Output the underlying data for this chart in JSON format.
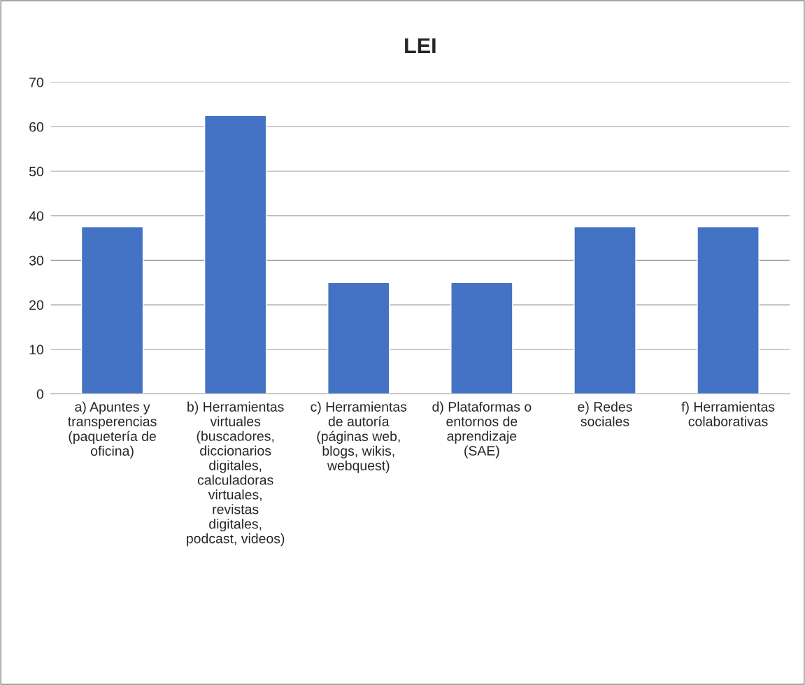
{
  "chart_data": {
    "type": "bar",
    "title": "LEI",
    "categories": [
      "a) Apuntes y transperencias (paquetería de oficina)",
      "b) Herramientas virtuales (buscadores, diccionarios digitales, calculadoras virtuales, revistas digitales, podcast, videos)",
      "c) Herramientas de autoría (páginas web, blogs, wikis, webquest)",
      "d) Plataformas o entornos de aprendizaje (SAE)",
      "e) Redes sociales",
      "f) Herramientas colaborativas"
    ],
    "values": [
      37.5,
      62.5,
      25,
      25,
      37.5,
      37.5
    ],
    "color": "#4472c4",
    "ylim": [
      0,
      70
    ],
    "yticks": [
      0,
      10,
      20,
      30,
      40,
      50,
      60,
      70
    ],
    "grid": "y"
  }
}
